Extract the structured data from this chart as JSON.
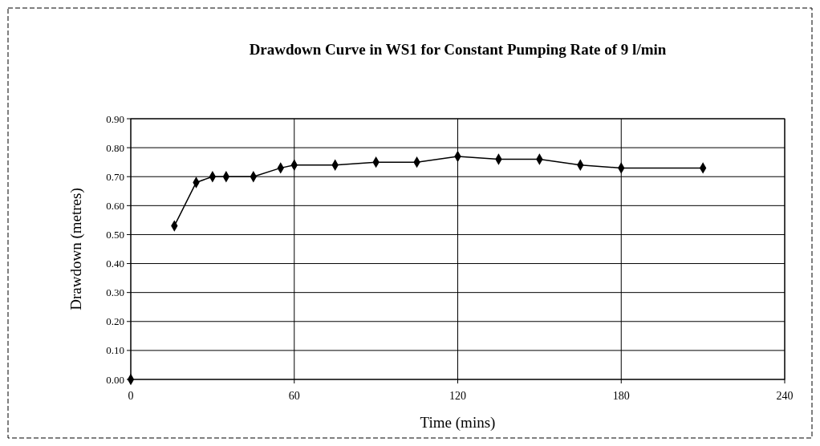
{
  "chart_data": {
    "type": "line",
    "title": "Drawdown Curve in WS1 for Constant Pumping Rate of 9 l/min",
    "xlabel": "Time (mins)",
    "ylabel": "Drawdown (metres)",
    "series": [
      {
        "type": "scatter",
        "color": "#000000",
        "x": [
          0
        ],
        "values": [
          0
        ]
      },
      {
        "color": "#000000",
        "x": [
          16,
          24,
          30,
          35,
          45,
          55,
          60,
          75,
          90,
          105,
          120,
          135,
          150,
          165,
          180,
          210
        ],
        "values": [
          0.53,
          0.68,
          0.7,
          0.7,
          0.7,
          0.73,
          0.74,
          0.74,
          0.75,
          0.75,
          0.77,
          0.76,
          0.76,
          0.74,
          0.73,
          0.73
        ]
      }
    ],
    "xlim": [
      0,
      240
    ],
    "xticks": [
      0,
      60,
      120,
      180,
      240
    ],
    "ylim": [
      0,
      0.9
    ],
    "yticks": [
      {
        "value": 0,
        "label": "0.00"
      },
      {
        "value": 0.1,
        "label": "0.10"
      },
      {
        "value": 0.2,
        "label": "0.20"
      },
      {
        "value": 0.3,
        "label": "0.30"
      },
      {
        "value": 0.4,
        "label": "0.40"
      },
      {
        "value": 0.5,
        "label": "0.50"
      },
      {
        "value": 0.6,
        "label": "0.60"
      },
      {
        "value": 0.7,
        "label": "0.70"
      },
      {
        "value": 0.8,
        "label": "0.80"
      },
      {
        "value": 0.9,
        "label": "0.90"
      }
    ],
    "grid": true,
    "marker": "diamond",
    "line_style": "solid"
  }
}
